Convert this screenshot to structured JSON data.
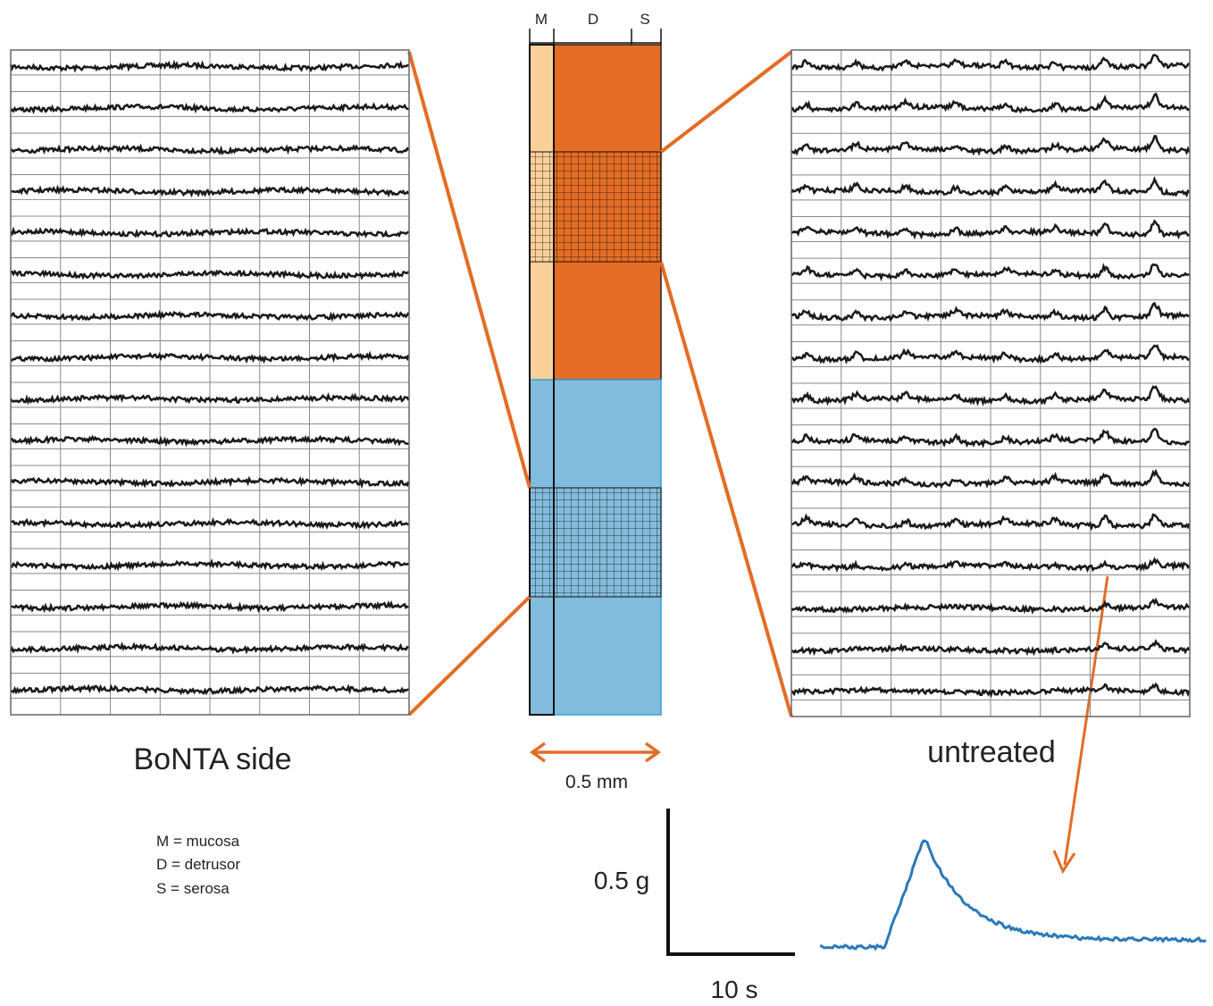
{
  "layer_labels": {
    "mucosa": "M",
    "detrusor": "D",
    "serosa": "S"
  },
  "left_panel": {
    "label": "BoNTA side"
  },
  "right_panel": {
    "label": "untreated"
  },
  "scale_width": "0.5 mm",
  "legend": [
    "M = mucosa",
    "D = detrusor",
    "S = serosa"
  ],
  "inset": {
    "y_scale": "0.5 g",
    "x_scale": "10 s"
  }
}
